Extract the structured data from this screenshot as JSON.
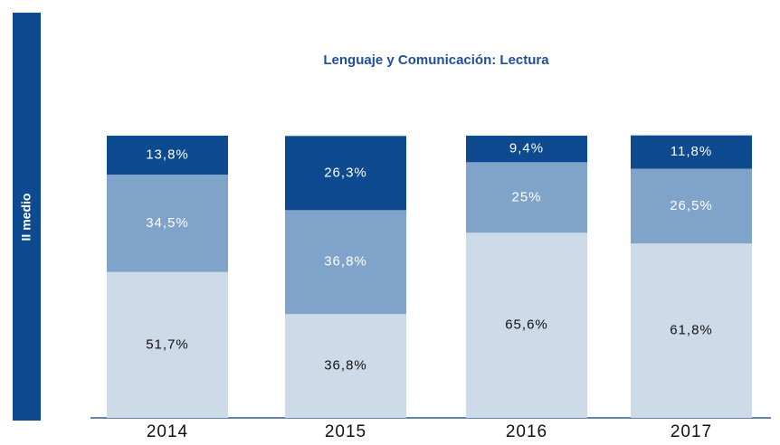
{
  "side_label": "II medio",
  "chart_data": {
    "type": "stacked-bar",
    "title": "Lenguaje y Comunicación: Lectura",
    "categories": [
      "2014",
      "2015",
      "2016",
      "2017"
    ],
    "ylim": [
      0,
      100
    ],
    "series": [
      {
        "color": "#cddbe9",
        "values": [
          51.7,
          36.8,
          65.6,
          61.8
        ],
        "value_labels": [
          "51,7%",
          "36,8%",
          "65,6%",
          "61,8%"
        ]
      },
      {
        "color": "#7fa3c9",
        "values": [
          34.5,
          36.8,
          25,
          26.5
        ],
        "value_labels": [
          "34,5%",
          "36,8%",
          "25%",
          "26,5%"
        ]
      },
      {
        "color": "#0d4a8f",
        "values": [
          13.8,
          26.3,
          9.4,
          11.8
        ],
        "value_labels": [
          "13,8%",
          "26,3%",
          "9,4%",
          "11,8%"
        ]
      }
    ]
  }
}
